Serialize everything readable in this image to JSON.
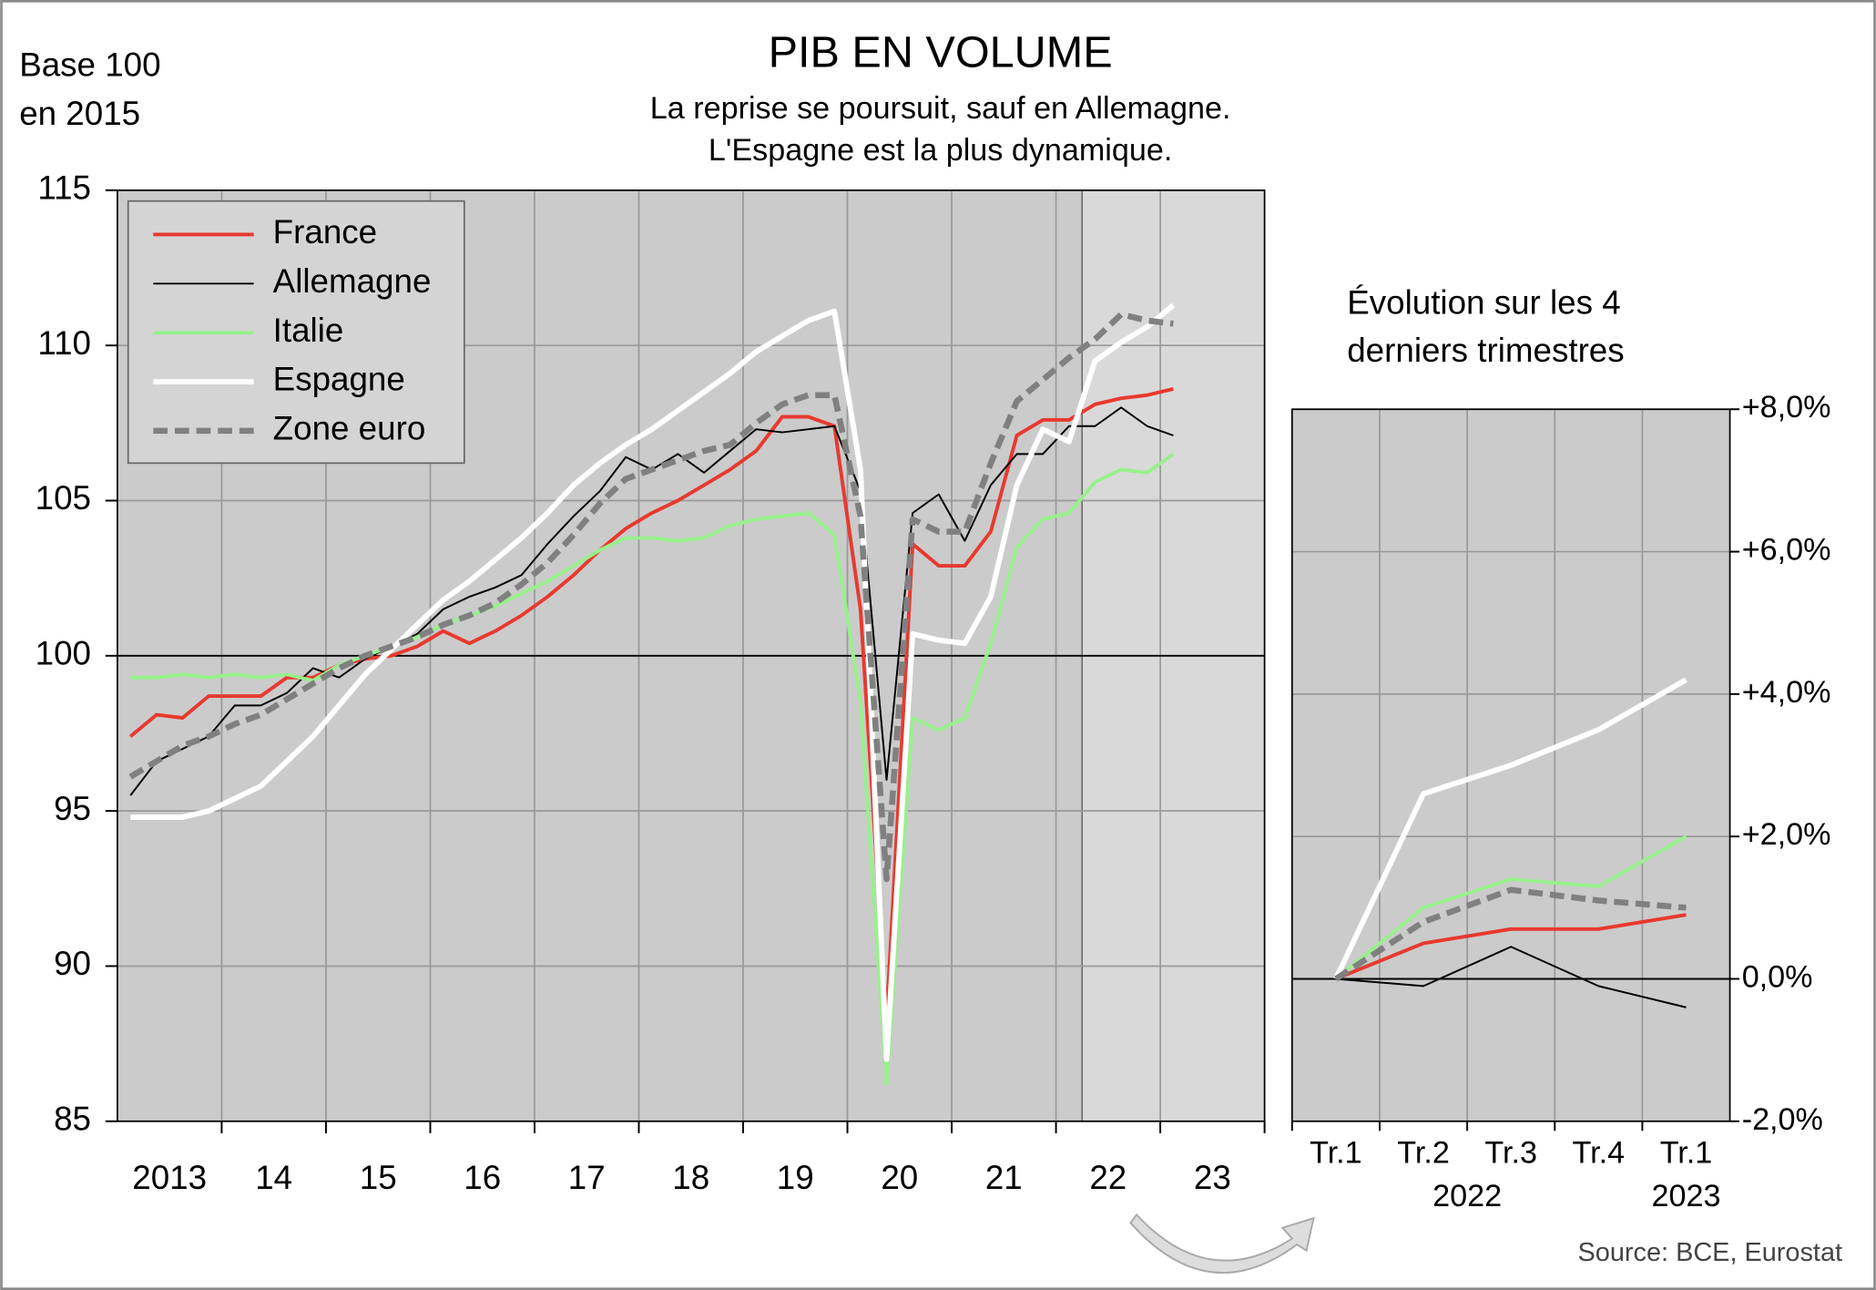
{
  "corner_label": [
    "Base 100",
    "en 2015"
  ],
  "title": "PIB EN VOLUME",
  "subtitle": [
    "La reprise se poursuit, sauf en Allemagne.",
    "L'Espagne est la plus dynamique."
  ],
  "source": "Source: BCE, Eurostat",
  "chart_data": [
    {
      "type": "line",
      "x": [
        2013.125,
        2013.375,
        2013.625,
        2013.875,
        2014.125,
        2014.375,
        2014.625,
        2014.875,
        2015.125,
        2015.375,
        2015.625,
        2015.875,
        2016.125,
        2016.375,
        2016.625,
        2016.875,
        2017.125,
        2017.375,
        2017.625,
        2017.875,
        2018.125,
        2018.375,
        2018.625,
        2018.875,
        2019.125,
        2019.375,
        2019.625,
        2019.875,
        2020.125,
        2020.375,
        2020.625,
        2020.875,
        2021.125,
        2021.375,
        2021.625,
        2021.875,
        2022.125,
        2022.375,
        2022.625,
        2022.875,
        2023.125
      ],
      "xlim": [
        2013,
        2024
      ],
      "xticks": [
        {
          "value": 2013.5,
          "label": "2013"
        },
        {
          "value": 2014.5,
          "label": "14"
        },
        {
          "value": 2015.5,
          "label": "15"
        },
        {
          "value": 2016.5,
          "label": "16"
        },
        {
          "value": 2017.5,
          "label": "17"
        },
        {
          "value": 2018.5,
          "label": "18"
        },
        {
          "value": 2019.5,
          "label": "19"
        },
        {
          "value": 2020.5,
          "label": "20"
        },
        {
          "value": 2021.5,
          "label": "21"
        },
        {
          "value": 2022.5,
          "label": "22"
        },
        {
          "value": 2023.5,
          "label": "23"
        }
      ],
      "ylim": [
        85,
        115
      ],
      "yticks": [
        85,
        90,
        95,
        100,
        105,
        110,
        115
      ],
      "reference_line": 100,
      "highlight": [
        2022.25,
        2024
      ],
      "grid": true,
      "legend": "upper left",
      "series": [
        {
          "name": "France",
          "color": "#e8392f",
          "values": [
            97.4,
            98.1,
            98.0,
            98.7,
            98.7,
            98.7,
            99.3,
            99.3,
            99.7,
            99.9,
            100.0,
            100.3,
            100.8,
            100.4,
            100.8,
            101.3,
            101.9,
            102.6,
            103.4,
            104.1,
            104.6,
            105.0,
            105.5,
            106.0,
            106.6,
            107.7,
            107.7,
            107.4,
            101.5,
            88.3,
            103.6,
            102.9,
            102.9,
            104.0,
            107.1,
            107.6,
            107.6,
            108.1,
            108.3,
            108.4,
            108.6
          ]
        },
        {
          "name": "Allemagne",
          "color": "#000000",
          "values": [
            95.5,
            96.6,
            97.0,
            97.4,
            98.4,
            98.4,
            98.8,
            99.6,
            99.3,
            99.9,
            100.3,
            100.7,
            101.5,
            101.9,
            102.2,
            102.6,
            103.6,
            104.5,
            105.3,
            106.4,
            106.0,
            106.5,
            105.9,
            106.6,
            107.3,
            107.2,
            107.3,
            107.4,
            105.3,
            96.0,
            104.6,
            105.2,
            103.7,
            105.5,
            106.5,
            106.5,
            107.4,
            107.4,
            108.0,
            107.4,
            107.1
          ]
        },
        {
          "name": "Italie",
          "color": "#98f08c",
          "values": [
            99.3,
            99.3,
            99.4,
            99.3,
            99.4,
            99.3,
            99.4,
            99.2,
            99.7,
            100.0,
            100.3,
            100.6,
            101.0,
            101.3,
            101.6,
            102.0,
            102.4,
            102.9,
            103.4,
            103.8,
            103.8,
            103.7,
            103.8,
            104.2,
            104.4,
            104.5,
            104.6,
            103.9,
            98.5,
            86.2,
            98.0,
            97.6,
            98.0,
            100.4,
            103.5,
            104.4,
            104.6,
            105.6,
            106.0,
            105.9,
            106.5
          ]
        },
        {
          "name": "Espagne",
          "color": "#ffffff",
          "values": [
            94.8,
            94.8,
            94.8,
            95.0,
            95.4,
            95.8,
            96.6,
            97.4,
            98.4,
            99.4,
            100.2,
            101.0,
            101.8,
            102.4,
            103.1,
            103.8,
            104.6,
            105.5,
            106.2,
            106.8,
            107.3,
            107.9,
            108.5,
            109.1,
            109.8,
            110.3,
            110.8,
            111.1,
            106.0,
            87.0,
            100.7,
            100.5,
            100.4,
            101.9,
            105.5,
            107.3,
            106.9,
            109.5,
            110.1,
            110.6,
            111.3
          ]
        },
        {
          "name": "Zone euro",
          "color": "#808080",
          "dashed": true,
          "values": [
            96.1,
            96.6,
            97.1,
            97.4,
            97.8,
            98.1,
            98.6,
            99.1,
            99.6,
            100.0,
            100.3,
            100.6,
            101.0,
            101.3,
            101.7,
            102.3,
            103.0,
            103.9,
            104.9,
            105.7,
            106.0,
            106.3,
            106.6,
            106.8,
            107.5,
            108.1,
            108.4,
            108.4,
            104.5,
            92.8,
            104.4,
            104.0,
            104.0,
            106.2,
            108.2,
            108.9,
            109.6,
            110.2,
            111.0,
            110.8,
            110.7
          ]
        }
      ]
    },
    {
      "type": "line",
      "title": [
        "Évolution sur les 4",
        "derniers trimestres"
      ],
      "categories": [
        "Tr.1",
        "Tr.2",
        "Tr.3",
        "Tr.4",
        "Tr.1"
      ],
      "groups": [
        {
          "label": "2022",
          "span": [
            0,
            3
          ]
        },
        {
          "label": "2023",
          "span": [
            4,
            4
          ]
        }
      ],
      "ylim": [
        -2,
        8
      ],
      "yticks": [
        {
          "value": -2,
          "label": "-2,0%"
        },
        {
          "value": 0,
          "label": "0,0%"
        },
        {
          "value": 2,
          "label": "+2,0%"
        },
        {
          "value": 4,
          "label": "+4,0%"
        },
        {
          "value": 6,
          "label": "+6,0%"
        },
        {
          "value": 8,
          "label": "+8,0%"
        }
      ],
      "reference_line": 0,
      "grid": true,
      "y_axis_side": "right",
      "series": [
        {
          "color": "#e8392f",
          "values": [
            0,
            0.5,
            0.7,
            0.7,
            0.9
          ]
        },
        {
          "color": "#000000",
          "values": [
            0,
            -0.1,
            0.45,
            -0.1,
            -0.4
          ]
        },
        {
          "color": "#98f08c",
          "values": [
            0,
            1.0,
            1.4,
            1.3,
            2.0
          ]
        },
        {
          "color": "#ffffff",
          "values": [
            0,
            2.6,
            3.0,
            3.5,
            4.2
          ]
        },
        {
          "color": "#808080",
          "dashed": true,
          "values": [
            0,
            0.8,
            1.25,
            1.1,
            1.0
          ]
        }
      ]
    }
  ]
}
